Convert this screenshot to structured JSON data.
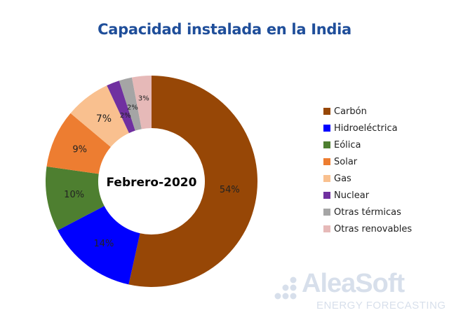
{
  "chart_data": {
    "type": "pie",
    "subtype": "donut",
    "title": "Capacidad instalada en la India",
    "center_label": "Febrero-2020",
    "categories": [
      "Carbón",
      "Hidroeléctrica",
      "Eólica",
      "Solar",
      "Gas",
      "Nuclear",
      "Otras térmicas",
      "Otras renovables"
    ],
    "values": [
      54,
      14,
      10,
      9,
      7,
      2,
      2,
      3
    ],
    "labels": [
      "54%",
      "14%",
      "10%",
      "9%",
      "7%",
      "2%",
      "2%",
      "3%"
    ],
    "colors": [
      "#974706",
      "#0000ff",
      "#4e7f30",
      "#ed7d31",
      "#f9c08f",
      "#7030a0",
      "#a5a5a5",
      "#e6b9b8"
    ],
    "unit": "%",
    "legend_position": "right",
    "start_angle_deg": 0,
    "direction": "clockwise"
  },
  "title": "Capacidad instalada en la India",
  "center_label": "Febrero-2020",
  "legend": [
    {
      "label": "Carbón",
      "color": "#974706"
    },
    {
      "label": "Hidroeléctrica",
      "color": "#0000ff"
    },
    {
      "label": "Eólica",
      "color": "#4e7f30"
    },
    {
      "label": "Solar",
      "color": "#ed7d31"
    },
    {
      "label": "Gas",
      "color": "#f9c08f"
    },
    {
      "label": "Nuclear",
      "color": "#7030a0"
    },
    {
      "label": "Otras térmicas",
      "color": "#a5a5a5"
    },
    {
      "label": "Otras renovables",
      "color": "#e6b9b8"
    }
  ],
  "watermark": {
    "brand": "AleaSoft",
    "tagline": "ENERGY FORECASTING"
  }
}
